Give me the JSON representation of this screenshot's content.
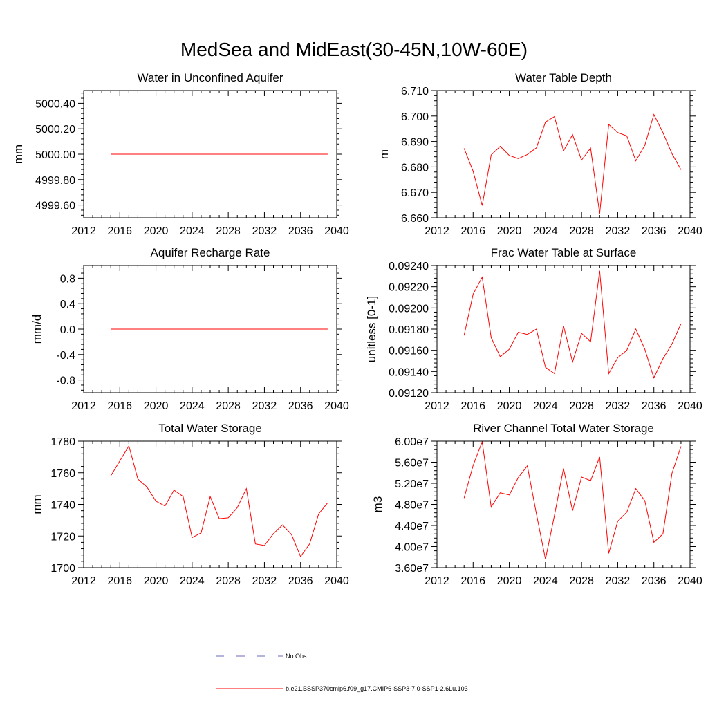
{
  "main_title": "MedSea and MidEast(30-45N,10W-60E)",
  "colors": {
    "series": "#ff0000",
    "obs": "#6a6ab8",
    "axis": "#000000"
  },
  "legend": [
    {
      "label": "No Obs",
      "style": "dashed",
      "color": "#6a6ab8"
    },
    {
      "label": "b.e21.BSSP370cmip6.f09_g17.CMIP6-SSP3-7.0-SSP1-2.6Lu.103",
      "style": "solid",
      "color": "#ff0000"
    }
  ],
  "chart_data": [
    {
      "type": "line",
      "title": "Water in Unconfined Aquifer",
      "ylabel": "mm",
      "xlim": [
        2012,
        2040
      ],
      "ylim": [
        4999.5,
        5000.5
      ],
      "xticks": [
        2012,
        2016,
        2020,
        2024,
        2028,
        2032,
        2036,
        2040
      ],
      "yticks": [
        4999.6,
        4999.8,
        5000.0,
        5000.2,
        5000.4
      ],
      "ytick_labels": [
        "4999.60",
        "4999.80",
        "5000.00",
        "5000.20",
        "5000.40"
      ],
      "x": [
        2015,
        2016,
        2017,
        2018,
        2019,
        2020,
        2021,
        2022,
        2023,
        2024,
        2025,
        2026,
        2027,
        2028,
        2029,
        2030,
        2031,
        2032,
        2033,
        2034,
        2035,
        2036,
        2037,
        2038,
        2039
      ],
      "values": [
        5000,
        5000,
        5000,
        5000,
        5000,
        5000,
        5000,
        5000,
        5000,
        5000,
        5000,
        5000,
        5000,
        5000,
        5000,
        5000,
        5000,
        5000,
        5000,
        5000,
        5000,
        5000,
        5000,
        5000,
        5000
      ]
    },
    {
      "type": "line",
      "title": "Water Table Depth",
      "ylabel": "m",
      "xlim": [
        2012,
        2040
      ],
      "ylim": [
        6.66,
        6.71
      ],
      "xticks": [
        2012,
        2016,
        2020,
        2024,
        2028,
        2032,
        2036,
        2040
      ],
      "yticks": [
        6.66,
        6.67,
        6.68,
        6.69,
        6.7,
        6.71
      ],
      "ytick_labels": [
        "6.660",
        "6.670",
        "6.680",
        "6.690",
        "6.700",
        "6.710"
      ],
      "x": [
        2015,
        2016,
        2017,
        2018,
        2019,
        2020,
        2021,
        2022,
        2023,
        2024,
        2025,
        2026,
        2027,
        2028,
        2029,
        2030,
        2031,
        2032,
        2033,
        2034,
        2035,
        2036,
        2037,
        2038,
        2039
      ],
      "values": [
        6.6873,
        6.6783,
        6.6648,
        6.6847,
        6.6881,
        6.6845,
        6.6833,
        6.6849,
        6.6875,
        6.6976,
        6.6998,
        6.6863,
        6.6927,
        6.6827,
        6.6874,
        6.6616,
        6.6967,
        6.6935,
        6.6922,
        6.6824,
        6.6885,
        6.7006,
        6.6935,
        6.6852,
        6.6789
      ]
    },
    {
      "type": "line",
      "title": "Aquifer Recharge Rate",
      "ylabel": "mm/d",
      "xlim": [
        2012,
        2040
      ],
      "ylim": [
        -1.0,
        1.0
      ],
      "xticks": [
        2012,
        2016,
        2020,
        2024,
        2028,
        2032,
        2036,
        2040
      ],
      "yticks": [
        -0.8,
        -0.4,
        0.0,
        0.4,
        0.8
      ],
      "ytick_labels": [
        "-0.8",
        "-0.4",
        "0.0",
        "0.4",
        "0.8"
      ],
      "x": [
        2015,
        2016,
        2017,
        2018,
        2019,
        2020,
        2021,
        2022,
        2023,
        2024,
        2025,
        2026,
        2027,
        2028,
        2029,
        2030,
        2031,
        2032,
        2033,
        2034,
        2035,
        2036,
        2037,
        2038,
        2039
      ],
      "values": [
        0,
        0,
        0,
        0,
        0,
        0,
        0,
        0,
        0,
        0,
        0,
        0,
        0,
        0,
        0,
        0,
        0,
        0,
        0,
        0,
        0,
        0,
        0,
        0,
        0
      ]
    },
    {
      "type": "line",
      "title": "Frac Water Table at Surface",
      "ylabel": "unitless [0-1]",
      "xlim": [
        2012,
        2040
      ],
      "ylim": [
        0.0912,
        0.0924
      ],
      "xticks": [
        2012,
        2016,
        2020,
        2024,
        2028,
        2032,
        2036,
        2040
      ],
      "yticks": [
        0.0912,
        0.0914,
        0.0916,
        0.0918,
        0.092,
        0.0922,
        0.0924
      ],
      "ytick_labels": [
        "0.09120",
        "0.09140",
        "0.09160",
        "0.09180",
        "0.09200",
        "0.09220",
        "0.09240"
      ],
      "x": [
        2015,
        2016,
        2017,
        2018,
        2019,
        2020,
        2021,
        2022,
        2023,
        2024,
        2025,
        2026,
        2027,
        2028,
        2029,
        2030,
        2031,
        2032,
        2033,
        2034,
        2035,
        2036,
        2037,
        2038,
        2039
      ],
      "values": [
        0.09174,
        0.09213,
        0.09229,
        0.09172,
        0.09154,
        0.09161,
        0.09177,
        0.09175,
        0.0918,
        0.09144,
        0.09138,
        0.09183,
        0.09149,
        0.09176,
        0.09168,
        0.09235,
        0.09138,
        0.09153,
        0.0916,
        0.0918,
        0.09161,
        0.09134,
        0.09152,
        0.09166,
        0.09185
      ]
    },
    {
      "type": "line",
      "title": "Total Water Storage",
      "ylabel": "mm",
      "xlim": [
        2012,
        2040
      ],
      "ylim": [
        1700,
        1780
      ],
      "xticks": [
        2012,
        2016,
        2020,
        2024,
        2028,
        2032,
        2036,
        2040
      ],
      "yticks": [
        1700,
        1720,
        1740,
        1760,
        1780
      ],
      "ytick_labels": [
        "1700",
        "1720",
        "1740",
        "1760",
        "1780"
      ],
      "x": [
        2015,
        2016,
        2017,
        2018,
        2019,
        2020,
        2021,
        2022,
        2023,
        2024,
        2025,
        2026,
        2027,
        2028,
        2029,
        2030,
        2031,
        2032,
        2033,
        2034,
        2035,
        2036,
        2037,
        2038,
        2039
      ],
      "values": [
        1758,
        1767.5,
        1777,
        1756,
        1751,
        1742,
        1739,
        1749,
        1745,
        1719,
        1722,
        1745,
        1731,
        1731.5,
        1738,
        1750,
        1715,
        1714,
        1721.5,
        1727,
        1721,
        1707,
        1715,
        1734,
        1741
      ]
    },
    {
      "type": "line",
      "title": "River Channel Total Water Storage",
      "ylabel": "m3",
      "xlim": [
        2012,
        2040
      ],
      "ylim": [
        36000000,
        60000000
      ],
      "xticks": [
        2012,
        2016,
        2020,
        2024,
        2028,
        2032,
        2036,
        2040
      ],
      "yticks": [
        36000000,
        40000000,
        44000000,
        48000000,
        52000000,
        56000000,
        60000000
      ],
      "ytick_labels": [
        "3.60e7",
        "4.00e7",
        "4.40e7",
        "4.80e7",
        "5.20e7",
        "5.60e7",
        "6.00e7"
      ],
      "x": [
        2015,
        2016,
        2017,
        2018,
        2019,
        2020,
        2021,
        2022,
        2023,
        2024,
        2025,
        2026,
        2027,
        2028,
        2029,
        2030,
        2031,
        2032,
        2033,
        2034,
        2035,
        2036,
        2037,
        2038,
        2039
      ],
      "values": [
        49200000,
        55400000,
        59900000,
        47500000,
        50200000,
        49800000,
        53100000,
        55300000,
        46200000,
        37600000,
        45900000,
        54800000,
        46800000,
        53200000,
        52500000,
        57000000,
        38700000,
        44800000,
        46500000,
        51000000,
        48700000,
        40800000,
        42400000,
        53900000,
        59000000
      ]
    }
  ]
}
